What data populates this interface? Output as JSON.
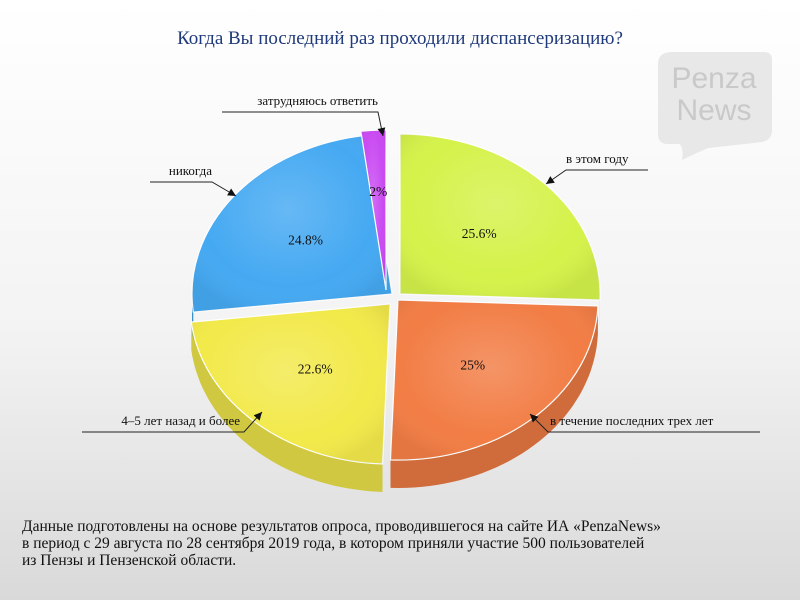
{
  "chart_data": {
    "type": "pie",
    "title": "Когда Вы последний раз проходили диспансеризацию?",
    "slices": [
      {
        "label": "в этом году",
        "value": 25.6,
        "display": "25.6%",
        "color": "#d4f24a"
      },
      {
        "label": "в течение последних трех лет",
        "value": 25,
        "display": "25%",
        "color": "#f27d45"
      },
      {
        "label": "4–5 лет назад и более",
        "value": 22.6,
        "display": "22.6%",
        "color": "#f2e94a"
      },
      {
        "label": "никогда",
        "value": 24.8,
        "display": "24.8%",
        "color": "#45a9f2"
      },
      {
        "label": "затрудняюсь ответить",
        "value": 2,
        "display": "2%",
        "color": "#c94af2"
      }
    ]
  },
  "watermark": {
    "line1": "Penza",
    "line2": "News"
  },
  "caption": {
    "line1": "Данные подготовлены на основе результатов опроса, проводившегося на сайте ИА «PenzaNews»",
    "line2": "в период с 29 августа по 28 сентября 2019 года, в котором приняли участие 500 пользователей",
    "line3": "из Пензы и Пензенской области."
  }
}
